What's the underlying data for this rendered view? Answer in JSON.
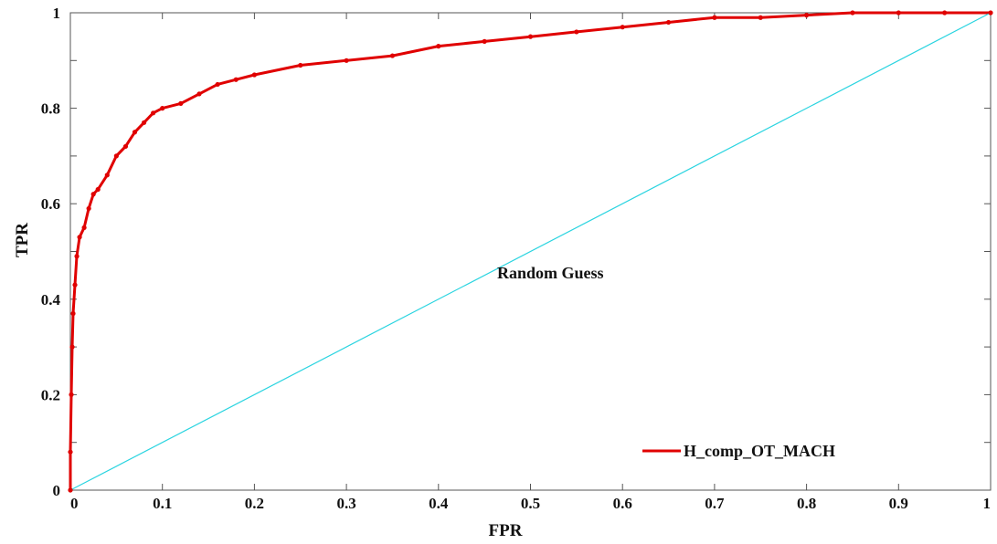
{
  "chart_data": {
    "type": "line",
    "title": "",
    "xlabel": "FPR",
    "ylabel": "TPR",
    "xlim": [
      0,
      1
    ],
    "ylim": [
      0,
      1
    ],
    "grid": false,
    "x_ticks": [
      "0",
      "0.1",
      "0.2",
      "0.3",
      "0.4",
      "0.5",
      "0.6",
      "0.7",
      "0.8",
      "0.9",
      "1"
    ],
    "y_ticks": [
      "0",
      "0.2",
      "0.4",
      "0.6",
      "0.8",
      "1"
    ],
    "legend": {
      "position": "bottom-right",
      "entries": [
        "H_comp_OT_MACH"
      ]
    },
    "annotations": [
      {
        "text": "Random Guess",
        "x": 0.53,
        "y": 0.45
      }
    ],
    "series": [
      {
        "name": "H_comp_OT_MACH",
        "color": "#e00000",
        "marker": "dot",
        "x": [
          0,
          0,
          0.001,
          0.002,
          0.003,
          0.005,
          0.007,
          0.01,
          0.015,
          0.02,
          0.025,
          0.03,
          0.04,
          0.05,
          0.06,
          0.07,
          0.08,
          0.09,
          0.1,
          0.12,
          0.14,
          0.16,
          0.18,
          0.2,
          0.25,
          0.3,
          0.35,
          0.4,
          0.45,
          0.5,
          0.55,
          0.6,
          0.65,
          0.7,
          0.75,
          0.8,
          0.85,
          0.9,
          0.95,
          1
        ],
        "y": [
          0,
          0.08,
          0.2,
          0.3,
          0.37,
          0.43,
          0.49,
          0.53,
          0.55,
          0.59,
          0.62,
          0.63,
          0.66,
          0.7,
          0.72,
          0.75,
          0.77,
          0.79,
          0.8,
          0.81,
          0.83,
          0.85,
          0.86,
          0.87,
          0.89,
          0.9,
          0.91,
          0.93,
          0.94,
          0.95,
          0.96,
          0.97,
          0.98,
          0.99,
          0.99,
          0.995,
          1,
          1,
          1,
          1
        ]
      },
      {
        "name": "Random Guess",
        "color": "#2ad4e0",
        "marker": "none",
        "x": [
          0,
          1
        ],
        "y": [
          0,
          1
        ]
      }
    ]
  }
}
